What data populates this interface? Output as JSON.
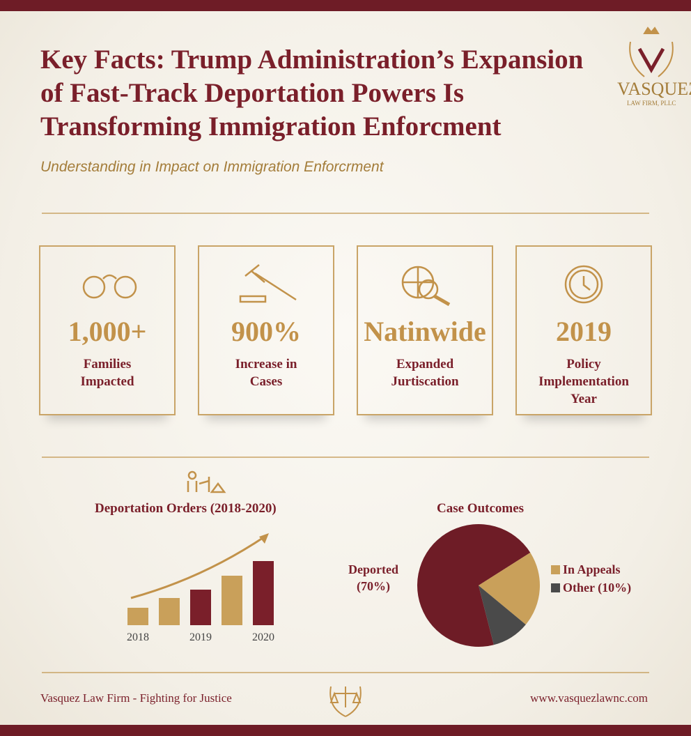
{
  "title": "Key Facts: Trump Administration’s Expansion\nof Fast-Track  Deportation  Powers Is\nTransforming Immigration Enforcment",
  "subtitle": "Understanding in Impact on Immigration Enforcrment",
  "logo": {
    "name": "VASQUEZ",
    "tagline": "LAW FIRM, PLLC"
  },
  "stats": [
    {
      "value": "1,000+",
      "label": "Families\nImpacted"
    },
    {
      "value": "900%",
      "label": "Increase in\nCases"
    },
    {
      "value": "Natinwide",
      "label": "Expanded\nJurtiscation"
    },
    {
      "value": "2019",
      "label": "Policy\nImplementation\nYear"
    }
  ],
  "chart_data": [
    {
      "type": "bar",
      "title": "Deportation Orders (2018-2020)",
      "categories": [
        "2018",
        null,
        "2019",
        null,
        "2020"
      ],
      "values": [
        25,
        39,
        51,
        71,
        92
      ],
      "colors": [
        "#c9a05a",
        "#c9a05a",
        "#7a1f2a",
        "#c9a05a",
        "#7a1f2a"
      ],
      "ylim": [
        0,
        100
      ]
    },
    {
      "type": "pie",
      "title": "Case Outcomes",
      "labels": [
        "Deported\n(70%)",
        "In Appeals",
        "Other (10%)"
      ],
      "values": [
        70,
        20,
        10
      ],
      "colors": [
        "#6e1c26",
        "#c9a05a",
        "#4a4a4a"
      ]
    }
  ],
  "footer": {
    "left": "Vasquez Law Firm - Fighting for Justice",
    "right": "www.vasquezlawnc.com"
  }
}
